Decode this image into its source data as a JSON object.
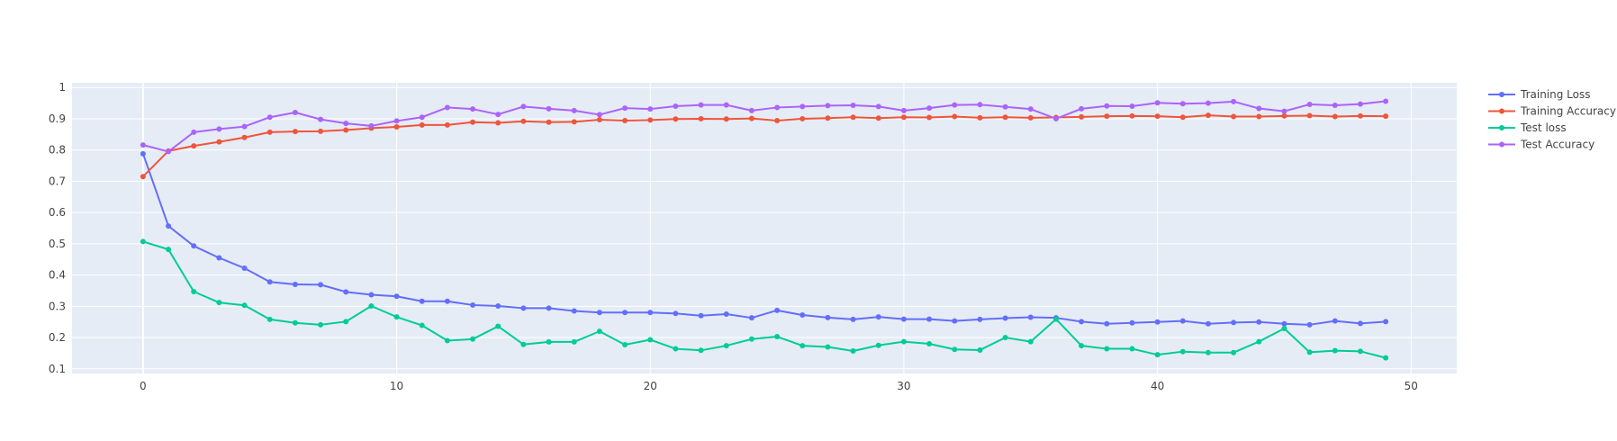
{
  "chart_data": {
    "type": "line",
    "title": "",
    "xlabel": "",
    "ylabel": "",
    "xlim": [
      -2.8,
      51.8
    ],
    "ylim": [
      0.085,
      1.015
    ],
    "xticks": [
      0,
      10,
      20,
      30,
      40,
      50
    ],
    "yticks": [
      0.1,
      0.2,
      0.3,
      0.4,
      0.5,
      0.6,
      0.7,
      0.8,
      0.9,
      1
    ],
    "grid": true,
    "legend_position": "top-right",
    "background": "#e5ecf6",
    "x": [
      0,
      1,
      2,
      3,
      4,
      5,
      6,
      7,
      8,
      9,
      10,
      11,
      12,
      13,
      14,
      15,
      16,
      17,
      18,
      19,
      20,
      21,
      22,
      23,
      24,
      25,
      26,
      27,
      28,
      29,
      30,
      31,
      32,
      33,
      34,
      35,
      36,
      37,
      38,
      39,
      40,
      41,
      42,
      43,
      44,
      45,
      46,
      47,
      48,
      49
    ],
    "series": [
      {
        "name": "Training Loss",
        "color": "#636efa",
        "values": [
          0.788,
          0.557,
          0.493,
          0.455,
          0.422,
          0.378,
          0.37,
          0.369,
          0.346,
          0.337,
          0.332,
          0.316,
          0.316,
          0.304,
          0.301,
          0.294,
          0.294,
          0.285,
          0.28,
          0.28,
          0.28,
          0.277,
          0.27,
          0.275,
          0.263,
          0.287,
          0.272,
          0.264,
          0.258,
          0.266,
          0.259,
          0.259,
          0.253,
          0.258,
          0.262,
          0.265,
          0.263,
          0.251,
          0.244,
          0.247,
          0.25,
          0.253,
          0.244,
          0.248,
          0.25,
          0.244,
          0.241,
          0.253,
          0.245,
          0.251
        ]
      },
      {
        "name": "Training Accuracy",
        "color": "#ef553b",
        "values": [
          0.715,
          0.797,
          0.813,
          0.826,
          0.84,
          0.857,
          0.859,
          0.86,
          0.864,
          0.87,
          0.874,
          0.88,
          0.88,
          0.889,
          0.887,
          0.892,
          0.889,
          0.89,
          0.897,
          0.894,
          0.896,
          0.899,
          0.9,
          0.899,
          0.901,
          0.894,
          0.9,
          0.902,
          0.905,
          0.902,
          0.905,
          0.904,
          0.907,
          0.903,
          0.905,
          0.903,
          0.904,
          0.906,
          0.908,
          0.909,
          0.908,
          0.905,
          0.911,
          0.907,
          0.907,
          0.909,
          0.91,
          0.907,
          0.909,
          0.908
        ]
      },
      {
        "name": "Test loss",
        "color": "#00cc96",
        "values": [
          0.507,
          0.482,
          0.347,
          0.312,
          0.303,
          0.258,
          0.247,
          0.241,
          0.251,
          0.301,
          0.266,
          0.239,
          0.19,
          0.195,
          0.236,
          0.178,
          0.186,
          0.186,
          0.22,
          0.177,
          0.193,
          0.164,
          0.159,
          0.174,
          0.195,
          0.203,
          0.174,
          0.17,
          0.157,
          0.175,
          0.187,
          0.18,
          0.162,
          0.16,
          0.2,
          0.187,
          0.259,
          0.174,
          0.164,
          0.164,
          0.145,
          0.155,
          0.152,
          0.152,
          0.187,
          0.229,
          0.153,
          0.158,
          0.156,
          0.135
        ]
      },
      {
        "name": "Test Accuracy",
        "color": "#ab63fa",
        "values": [
          0.816,
          0.795,
          0.857,
          0.867,
          0.875,
          0.905,
          0.92,
          0.898,
          0.885,
          0.877,
          0.893,
          0.905,
          0.936,
          0.931,
          0.914,
          0.939,
          0.932,
          0.926,
          0.913,
          0.934,
          0.931,
          0.94,
          0.944,
          0.944,
          0.926,
          0.936,
          0.939,
          0.942,
          0.943,
          0.939,
          0.926,
          0.934,
          0.944,
          0.945,
          0.938,
          0.931,
          0.9,
          0.932,
          0.941,
          0.94,
          0.951,
          0.948,
          0.95,
          0.955,
          0.933,
          0.924,
          0.946,
          0.943,
          0.947,
          0.956
        ]
      }
    ]
  }
}
